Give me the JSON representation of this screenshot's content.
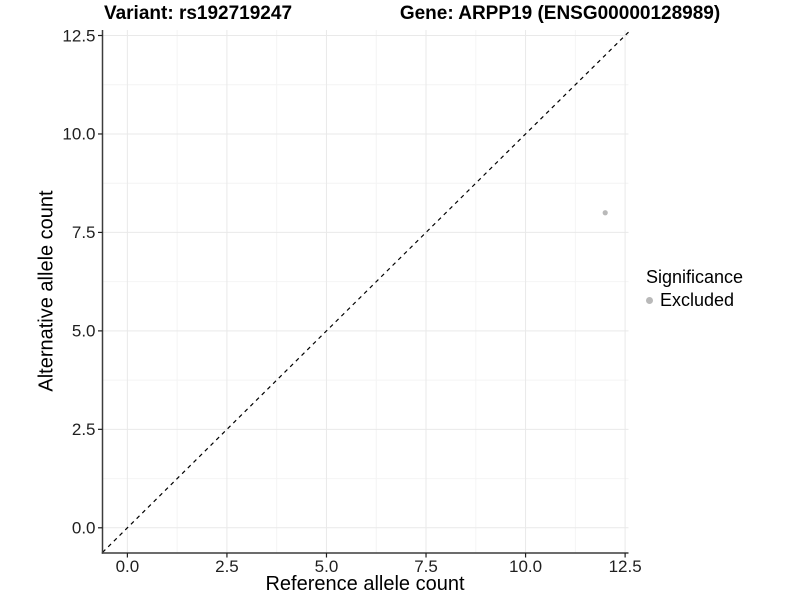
{
  "chart_data": {
    "type": "scatter",
    "titles": {
      "left": "Variant: rs192719247",
      "right": "Gene: ARPP19 (ENSG00000128989)"
    },
    "xlabel": "Reference allele count",
    "ylabel": "Alternative allele count",
    "x_ticks": {
      "values": [
        0,
        2.5,
        5,
        7.5,
        10,
        12.5
      ],
      "labels": [
        "0.0",
        "2.5",
        "5.0",
        "7.5",
        "10.0",
        "12.5"
      ]
    },
    "y_ticks": {
      "values": [
        0,
        2.5,
        5,
        7.5,
        10,
        12.5
      ],
      "labels": [
        "0.0",
        "2.5",
        "5.0",
        "7.5",
        "10.0",
        "12.5"
      ]
    },
    "xlim": [
      -0.625,
      12.585
    ],
    "ylim": [
      -0.64,
      12.64
    ],
    "grid": {
      "major": true,
      "minor": true,
      "major_color": "#e9e9e9",
      "minor_color": "#f4f4f4"
    },
    "reference_line": {
      "kind": "y = x",
      "style": "dashed",
      "color": "#000000"
    },
    "series": [
      {
        "name": "Excluded",
        "color": "#b9b9b9",
        "points": [
          {
            "x": 12,
            "y": 8
          }
        ]
      }
    ],
    "legend": {
      "title": "Significance",
      "position": "right",
      "entries": [
        {
          "label": "Excluded",
          "color": "#b9b9b9"
        }
      ]
    },
    "axis_line_color": "#3c3c3c"
  }
}
